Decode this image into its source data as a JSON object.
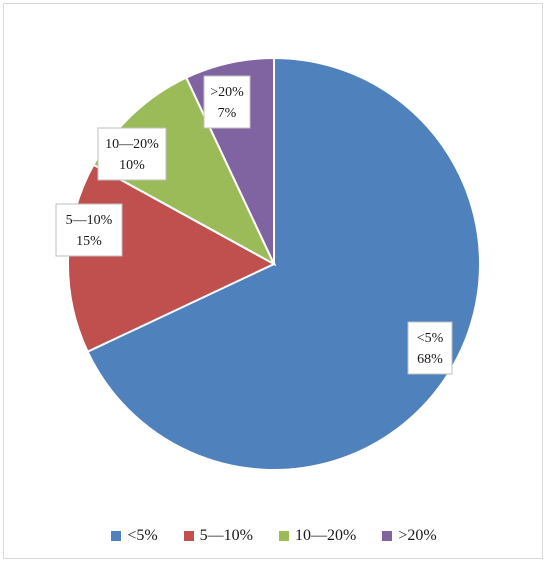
{
  "chart_data": {
    "type": "pie",
    "title": "",
    "categories": [
      "<5%",
      "5—10%",
      "10—20%",
      ">20%"
    ],
    "values": [
      68,
      15,
      10,
      7
    ],
    "value_labels": [
      "68%",
      "15%",
      "10%",
      "7%"
    ],
    "colors": [
      "#4f81bd",
      "#c0504d",
      "#9bbb59",
      "#8064a2"
    ],
    "start_angle_deg": 0,
    "direction": "clockwise",
    "legend_position": "bottom"
  }
}
